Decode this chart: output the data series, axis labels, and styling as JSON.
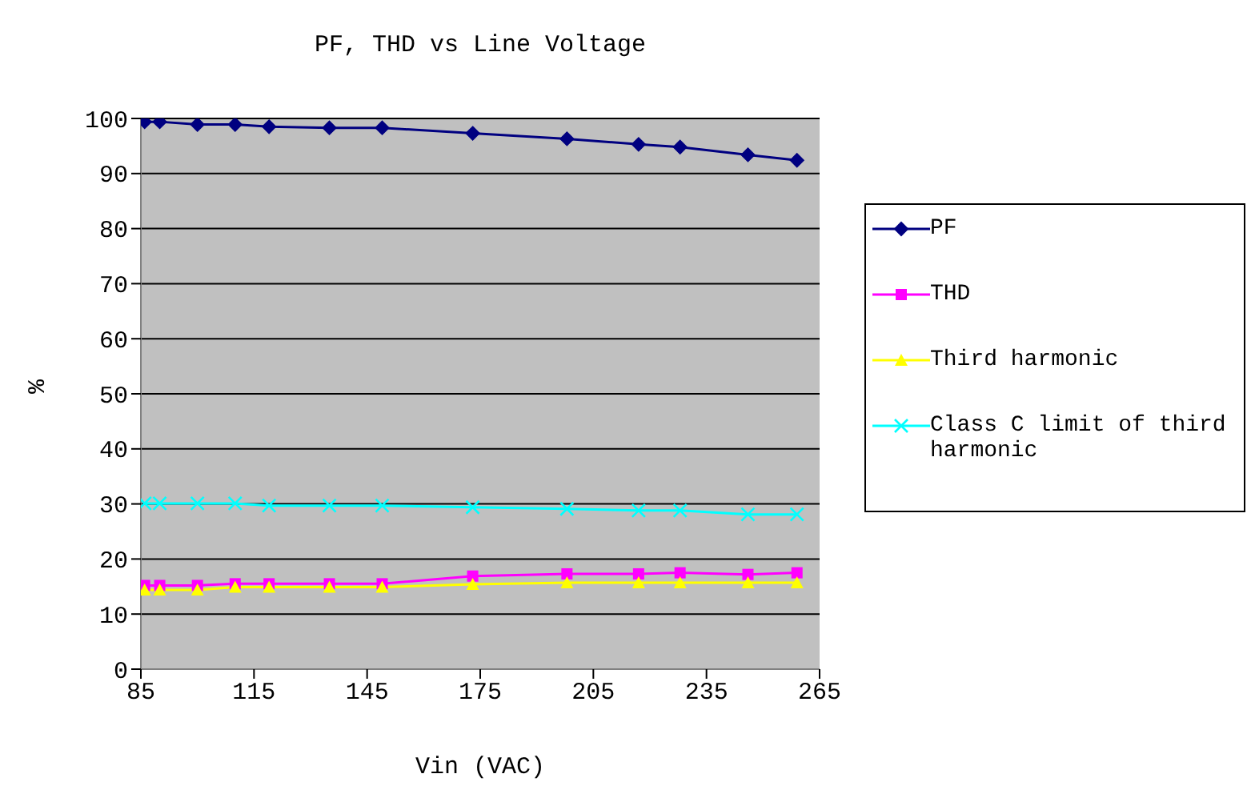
{
  "chart_data": {
    "type": "line",
    "title": "PF, THD vs Line Voltage",
    "xlabel": "Vin (VAC)",
    "ylabel": "%",
    "x": [
      86,
      90,
      100,
      110,
      119,
      135,
      149,
      173,
      198,
      217,
      228,
      246,
      259
    ],
    "series": [
      {
        "name": "PF",
        "color": "#000080",
        "marker": "diamond",
        "values": [
          99.4,
          99.4,
          98.9,
          98.9,
          98.5,
          98.3,
          98.3,
          97.3,
          96.3,
          95.3,
          94.8,
          93.4,
          92.4
        ]
      },
      {
        "name": "THD",
        "color": "#ff00ff",
        "marker": "square",
        "values": [
          15.2,
          15.2,
          15.2,
          15.5,
          15.5,
          15.5,
          15.5,
          16.9,
          17.3,
          17.3,
          17.5,
          17.2,
          17.5
        ]
      },
      {
        "name": "Third harmonic",
        "color": "#ffff00",
        "marker": "triangle",
        "values": [
          14.4,
          14.4,
          14.4,
          14.9,
          14.9,
          14.9,
          14.9,
          15.4,
          15.7,
          15.7,
          15.7,
          15.7,
          15.7
        ]
      },
      {
        "name": "Class C limit of third harmonic",
        "color": "#00ffff",
        "marker": "cross",
        "values": [
          30.1,
          30.1,
          30.1,
          30.1,
          29.7,
          29.7,
          29.7,
          29.4,
          29.1,
          28.8,
          28.8,
          28.1,
          28.1
        ]
      }
    ],
    "xlim": [
      85,
      265
    ],
    "xticks": [
      85,
      115,
      145,
      175,
      205,
      235,
      265
    ],
    "ylim": [
      0,
      100
    ],
    "yticks": [
      0,
      10,
      20,
      30,
      40,
      50,
      60,
      70,
      80,
      90,
      100
    ],
    "grid": "y",
    "legend": "right"
  }
}
